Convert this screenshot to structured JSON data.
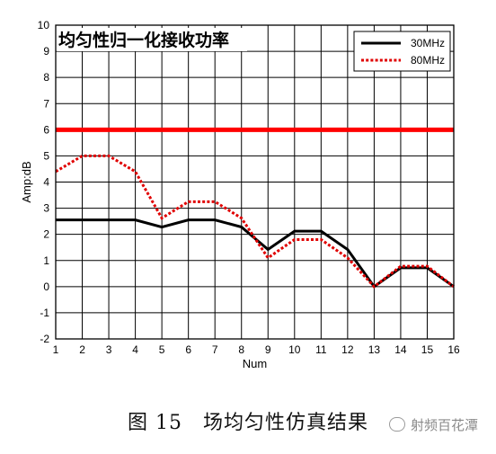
{
  "chart_data": {
    "type": "line",
    "title": "均匀性归一化接收功率",
    "xlabel": "Num",
    "ylabel": "Amp:dB",
    "xlim": [
      1,
      16
    ],
    "ylim": [
      -2,
      10
    ],
    "x": [
      1,
      2,
      3,
      4,
      5,
      6,
      7,
      8,
      9,
      10,
      11,
      12,
      13,
      14,
      15,
      16
    ],
    "x_ticks": [
      1,
      2,
      3,
      4,
      5,
      6,
      7,
      8,
      9,
      10,
      11,
      12,
      13,
      14,
      15,
      16
    ],
    "y_ticks": [
      -2,
      -1,
      0,
      1,
      2,
      3,
      4,
      5,
      6,
      7,
      8,
      9,
      10
    ],
    "grid": true,
    "legend_position": "top-right",
    "series": [
      {
        "name": "30MHz",
        "color": "#000000",
        "style": "solid",
        "values": [
          2.55,
          2.55,
          2.55,
          2.55,
          2.28,
          2.55,
          2.55,
          2.28,
          1.42,
          2.12,
          2.12,
          1.42,
          0.0,
          0.72,
          0.72,
          0.0
        ]
      },
      {
        "name": "80MHz",
        "color": "#e00000",
        "style": "dotted",
        "values": [
          4.4,
          5.0,
          5.0,
          4.4,
          2.62,
          3.25,
          3.25,
          2.62,
          1.1,
          1.8,
          1.8,
          1.1,
          0.0,
          0.78,
          0.78,
          0.0
        ]
      }
    ],
    "reference_line": {
      "value": 6,
      "color": "#ff0000"
    }
  },
  "caption": "图 15　场均匀性仿真结果",
  "watermark": "射频百花潭"
}
